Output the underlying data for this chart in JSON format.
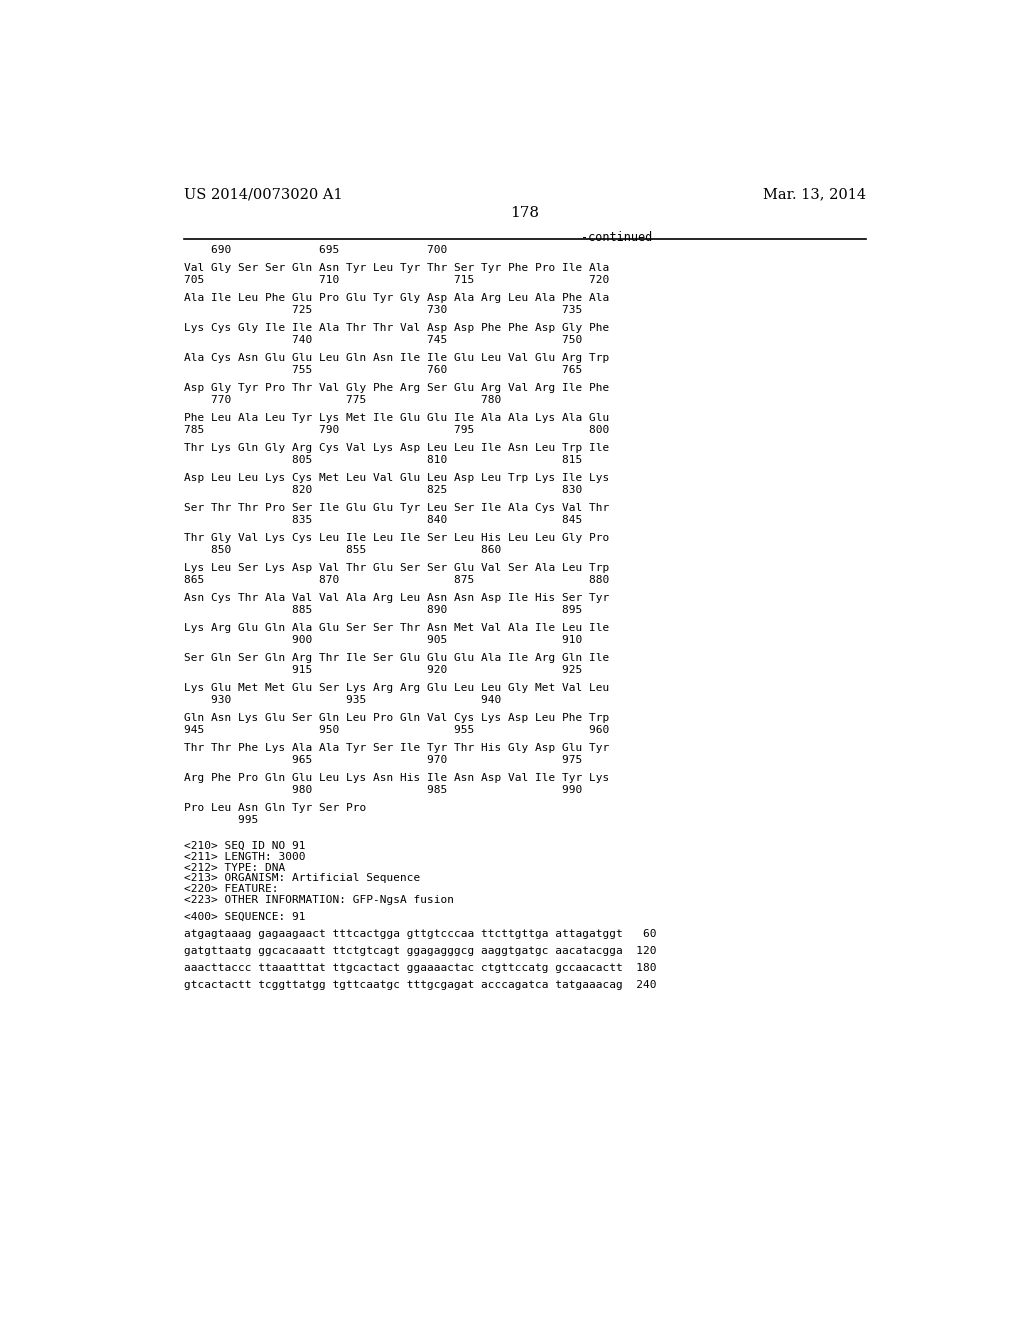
{
  "header_left": "US 2014/0073020 A1",
  "header_right": "Mar. 13, 2014",
  "page_number": "178",
  "continued_label": "-continued",
  "background_color": "#ffffff",
  "text_color": "#000000",
  "content_lines": [
    [
      "ruler",
      "    690             695             700"
    ],
    [
      "gap_large",
      ""
    ],
    [
      "seq",
      "Val Gly Ser Ser Gln Asn Tyr Leu Tyr Thr Ser Tyr Phe Pro Ile Ala"
    ],
    [
      "num",
      "705                 710                 715                 720"
    ],
    [
      "gap_large",
      ""
    ],
    [
      "seq",
      "Ala Ile Leu Phe Glu Pro Glu Tyr Gly Asp Ala Arg Leu Ala Phe Ala"
    ],
    [
      "num",
      "                725                 730                 735"
    ],
    [
      "gap_large",
      ""
    ],
    [
      "seq",
      "Lys Cys Gly Ile Ile Ala Thr Thr Val Asp Asp Phe Phe Asp Gly Phe"
    ],
    [
      "num",
      "                740                 745                 750"
    ],
    [
      "gap_large",
      ""
    ],
    [
      "seq",
      "Ala Cys Asn Glu Glu Leu Gln Asn Ile Ile Glu Leu Val Glu Arg Trp"
    ],
    [
      "num",
      "                755                 760                 765"
    ],
    [
      "gap_large",
      ""
    ],
    [
      "seq",
      "Asp Gly Tyr Pro Thr Val Gly Phe Arg Ser Glu Arg Val Arg Ile Phe"
    ],
    [
      "num",
      "    770                 775                 780"
    ],
    [
      "gap_large",
      ""
    ],
    [
      "seq",
      "Phe Leu Ala Leu Tyr Lys Met Ile Glu Glu Ile Ala Ala Lys Ala Glu"
    ],
    [
      "num",
      "785                 790                 795                 800"
    ],
    [
      "gap_large",
      ""
    ],
    [
      "seq",
      "Thr Lys Gln Gly Arg Cys Val Lys Asp Leu Leu Ile Asn Leu Trp Ile"
    ],
    [
      "num",
      "                805                 810                 815"
    ],
    [
      "gap_large",
      ""
    ],
    [
      "seq",
      "Asp Leu Leu Lys Cys Met Leu Val Glu Leu Asp Leu Trp Lys Ile Lys"
    ],
    [
      "num",
      "                820                 825                 830"
    ],
    [
      "gap_large",
      ""
    ],
    [
      "seq",
      "Ser Thr Thr Pro Ser Ile Glu Glu Tyr Leu Ser Ile Ala Cys Val Thr"
    ],
    [
      "num",
      "                835                 840                 845"
    ],
    [
      "gap_large",
      ""
    ],
    [
      "seq",
      "Thr Gly Val Lys Cys Leu Ile Leu Ile Ser Leu His Leu Leu Gly Pro"
    ],
    [
      "num",
      "    850                 855                 860"
    ],
    [
      "gap_large",
      ""
    ],
    [
      "seq",
      "Lys Leu Ser Lys Asp Val Thr Glu Ser Ser Glu Val Ser Ala Leu Trp"
    ],
    [
      "num",
      "865                 870                 875                 880"
    ],
    [
      "gap_large",
      ""
    ],
    [
      "seq",
      "Asn Cys Thr Ala Val Val Ala Arg Leu Asn Asn Asp Ile His Ser Tyr"
    ],
    [
      "num",
      "                885                 890                 895"
    ],
    [
      "gap_large",
      ""
    ],
    [
      "seq",
      "Lys Arg Glu Gln Ala Glu Ser Ser Thr Asn Met Val Ala Ile Leu Ile"
    ],
    [
      "num",
      "                900                 905                 910"
    ],
    [
      "gap_large",
      ""
    ],
    [
      "seq",
      "Ser Gln Ser Gln Arg Thr Ile Ser Glu Glu Glu Ala Ile Arg Gln Ile"
    ],
    [
      "num",
      "                915                 920                 925"
    ],
    [
      "gap_large",
      ""
    ],
    [
      "seq",
      "Lys Glu Met Met Glu Ser Lys Arg Arg Glu Leu Leu Gly Met Val Leu"
    ],
    [
      "num",
      "    930                 935                 940"
    ],
    [
      "gap_large",
      ""
    ],
    [
      "seq",
      "Gln Asn Lys Glu Ser Gln Leu Pro Gln Val Cys Lys Asp Leu Phe Trp"
    ],
    [
      "num",
      "945                 950                 955                 960"
    ],
    [
      "gap_large",
      ""
    ],
    [
      "seq",
      "Thr Thr Phe Lys Ala Ala Tyr Ser Ile Tyr Thr His Gly Asp Glu Tyr"
    ],
    [
      "num",
      "                965                 970                 975"
    ],
    [
      "gap_large",
      ""
    ],
    [
      "seq",
      "Arg Phe Pro Gln Glu Leu Lys Asn His Ile Asn Asp Val Ile Tyr Lys"
    ],
    [
      "num",
      "                980                 985                 990"
    ],
    [
      "gap_large",
      ""
    ],
    [
      "seq",
      "Pro Leu Asn Gln Tyr Ser Pro"
    ],
    [
      "num",
      "        995"
    ]
  ],
  "meta_lines": [
    [
      "gap_xl",
      ""
    ],
    [
      "meta",
      "<210> SEQ ID NO 91"
    ],
    [
      "meta",
      "<211> LENGTH: 3000"
    ],
    [
      "meta",
      "<212> TYPE: DNA"
    ],
    [
      "meta",
      "<213> ORGANISM: Artificial Sequence"
    ],
    [
      "meta",
      "<220> FEATURE:"
    ],
    [
      "meta",
      "<223> OTHER INFORMATION: GFP-NgsA fusion"
    ],
    [
      "gap_large",
      ""
    ],
    [
      "meta",
      "<400> SEQUENCE: 91"
    ],
    [
      "gap_large",
      ""
    ],
    [
      "meta",
      "atgagtaaag gagaagaact tttcactgga gttgtcccaa ttcttgttga attagatggt   60"
    ],
    [
      "gap_large",
      ""
    ],
    [
      "meta",
      "gatgttaatg ggcacaaatt ttctgtcagt ggagagggcg aaggtgatgc aacatacgga  120"
    ],
    [
      "gap_large",
      ""
    ],
    [
      "meta",
      "aaacttaccc ttaaatttat ttgcactact ggaaaactac ctgttccatg gccaacactt  180"
    ],
    [
      "gap_large",
      ""
    ],
    [
      "meta",
      "gtcactactt tcggttatgg tgttcaatgc tttgcgagat acccagatca tatgaaacag  240"
    ]
  ]
}
